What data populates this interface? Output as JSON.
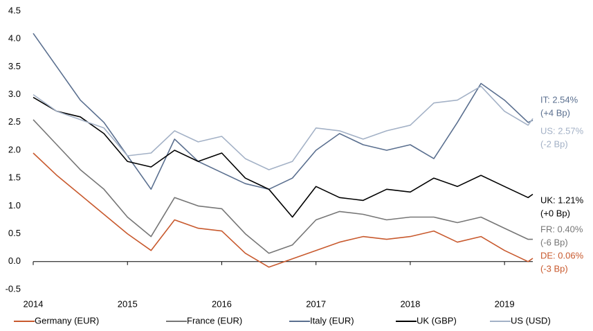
{
  "chart_data": {
    "type": "line",
    "x": [
      2014,
      2014.25,
      2014.5,
      2014.75,
      2015,
      2015.25,
      2015.5,
      2015.75,
      2016,
      2016.25,
      2016.5,
      2016.75,
      2017,
      2017.25,
      2017.5,
      2017.75,
      2018,
      2018.25,
      2018.5,
      2018.75,
      2019,
      2019.25,
      2019.3
    ],
    "xlim": [
      2014,
      2019.3
    ],
    "xticks": [
      2014,
      2015,
      2016,
      2017,
      2018,
      2019
    ],
    "ylim": [
      -0.5,
      4.5
    ],
    "yticks": [
      {
        "value": -0.5,
        "label": "-0.5"
      },
      {
        "value": 0,
        "label": "0.0"
      },
      0.5,
      {
        "value": 1,
        "label": "1.0"
      },
      1.5,
      {
        "value": 2,
        "label": "2.0"
      },
      2.5,
      {
        "value": 3,
        "label": "3.0"
      },
      3.5,
      {
        "value": 4,
        "label": "4.0"
      },
      4.5
    ],
    "series": [
      {
        "name": "Germany (EUR)",
        "color": "#c8592d",
        "values": [
          1.95,
          1.55,
          1.2,
          0.85,
          0.5,
          0.2,
          0.75,
          0.6,
          0.55,
          0.15,
          -0.1,
          0.05,
          0.2,
          0.35,
          0.45,
          0.4,
          0.45,
          0.55,
          0.35,
          0.45,
          0.2,
          0.0,
          0.06
        ]
      },
      {
        "name": "France (EUR)",
        "color": "#767676",
        "values": [
          2.55,
          2.1,
          1.65,
          1.3,
          0.8,
          0.45,
          1.15,
          1.0,
          0.95,
          0.5,
          0.15,
          0.3,
          0.75,
          0.9,
          0.85,
          0.75,
          0.8,
          0.8,
          0.7,
          0.8,
          0.6,
          0.4,
          0.4
        ]
      },
      {
        "name": "Italy (EUR)",
        "color": "#5a6f8f",
        "values": [
          4.1,
          3.5,
          2.9,
          2.5,
          1.9,
          1.3,
          2.2,
          1.8,
          1.6,
          1.4,
          1.3,
          1.5,
          2.0,
          2.3,
          2.1,
          2.0,
          2.1,
          1.85,
          2.5,
          3.2,
          2.9,
          2.5,
          2.54
        ]
      },
      {
        "name": "UK (GBP)",
        "color": "#000000",
        "values": [
          2.95,
          2.7,
          2.6,
          2.3,
          1.8,
          1.7,
          2.0,
          1.8,
          1.95,
          1.5,
          1.3,
          0.8,
          1.35,
          1.15,
          1.1,
          1.3,
          1.25,
          1.5,
          1.35,
          1.55,
          1.35,
          1.15,
          1.21
        ]
      },
      {
        "name": "US (USD)",
        "color": "#a3b1c6",
        "values": [
          3.0,
          2.7,
          2.55,
          2.4,
          1.9,
          1.95,
          2.35,
          2.15,
          2.25,
          1.85,
          1.65,
          1.8,
          2.4,
          2.35,
          2.2,
          2.35,
          2.45,
          2.85,
          2.9,
          3.15,
          2.7,
          2.45,
          2.57
        ]
      }
    ],
    "annotations": [
      {
        "lines": [
          "IT: 2.54%",
          "(+4 Bp)"
        ],
        "color": "#5a6f8f"
      },
      {
        "lines": [
          "US: 2.57%",
          "(-2 Bp)"
        ],
        "color": "#a3b1c6"
      },
      {
        "lines": [
          "UK: 1.21%",
          "(+0 Bp)"
        ],
        "color": "#000000"
      },
      {
        "lines": [
          "FR: 0.40%",
          "(-6 Bp)"
        ],
        "color": "#767676"
      },
      {
        "lines": [
          "DE: 0.06%",
          "(-3 Bp)"
        ],
        "color": "#c8592d"
      }
    ]
  }
}
